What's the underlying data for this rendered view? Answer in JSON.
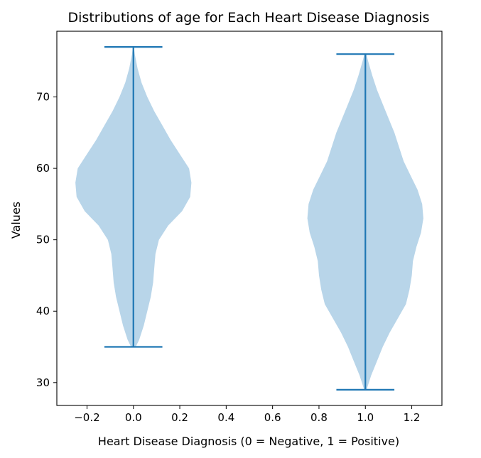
{
  "chart_data": {
    "type": "violin",
    "title": "Distributions of age for Each Heart Disease Diagnosis",
    "xlabel": "Heart Disease Diagnosis (0 = Negative, 1 = Positive)",
    "ylabel": "Values",
    "xlim": [
      -0.33,
      1.33
    ],
    "ylim": [
      26.8,
      79.2
    ],
    "xticks": [
      {
        "value": -0.2,
        "label": "−0.2"
      },
      {
        "value": 0.0,
        "label": "0.0"
      },
      {
        "value": 0.2,
        "label": "0.2"
      },
      {
        "value": 0.4,
        "label": "0.4"
      },
      {
        "value": 0.6,
        "label": "0.6"
      },
      {
        "value": 0.8,
        "label": "0.8"
      },
      {
        "value": 1.0,
        "label": "1.0"
      },
      {
        "value": 1.2,
        "label": "1.2"
      }
    ],
    "yticks": [
      {
        "value": 30,
        "label": "30"
      },
      {
        "value": 40,
        "label": "40"
      },
      {
        "value": 50,
        "label": "50"
      },
      {
        "value": 60,
        "label": "60"
      },
      {
        "value": 70,
        "label": "70"
      }
    ],
    "grid": false,
    "violins": [
      {
        "position": 0,
        "min": 35,
        "max": 77,
        "profile": [
          [
            35,
            0.01
          ],
          [
            36,
            0.025
          ],
          [
            38,
            0.045
          ],
          [
            40,
            0.06
          ],
          [
            42,
            0.075
          ],
          [
            44,
            0.085
          ],
          [
            46,
            0.09
          ],
          [
            48,
            0.095
          ],
          [
            50,
            0.11
          ],
          [
            52,
            0.15
          ],
          [
            54,
            0.21
          ],
          [
            56,
            0.245
          ],
          [
            58,
            0.25
          ],
          [
            60,
            0.24
          ],
          [
            62,
            0.2
          ],
          [
            64,
            0.16
          ],
          [
            66,
            0.125
          ],
          [
            68,
            0.09
          ],
          [
            70,
            0.06
          ],
          [
            72,
            0.035
          ],
          [
            74,
            0.018
          ],
          [
            76,
            0.006
          ],
          [
            77,
            0.002
          ]
        ]
      },
      {
        "position": 1,
        "min": 29,
        "max": 76,
        "profile": [
          [
            29,
            0.005
          ],
          [
            31,
            0.025
          ],
          [
            33,
            0.05
          ],
          [
            35,
            0.075
          ],
          [
            37,
            0.105
          ],
          [
            39,
            0.14
          ],
          [
            41,
            0.175
          ],
          [
            43,
            0.19
          ],
          [
            45,
            0.2
          ],
          [
            47,
            0.205
          ],
          [
            49,
            0.22
          ],
          [
            51,
            0.24
          ],
          [
            53,
            0.25
          ],
          [
            55,
            0.245
          ],
          [
            57,
            0.225
          ],
          [
            59,
            0.195
          ],
          [
            61,
            0.165
          ],
          [
            63,
            0.145
          ],
          [
            65,
            0.125
          ],
          [
            67,
            0.1
          ],
          [
            69,
            0.075
          ],
          [
            71,
            0.05
          ],
          [
            73,
            0.03
          ],
          [
            75,
            0.012
          ],
          [
            76,
            0.004
          ]
        ]
      }
    ],
    "colors": {
      "body": "#b8d5e9",
      "line": "#1f77b4",
      "axis": "#000000"
    }
  }
}
